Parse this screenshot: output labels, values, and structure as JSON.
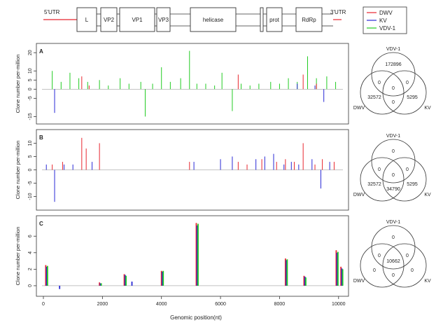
{
  "genome_map": {
    "utr5_label": "5'UTR",
    "utr3_label": "3'UTR",
    "segments": [
      "L",
      "VP2",
      "VP1",
      "VP3",
      "helicase",
      "prot",
      "RdRp"
    ]
  },
  "legend": {
    "entries": [
      {
        "name": "DWV",
        "color": "#e8262e"
      },
      {
        "name": "KV",
        "color": "#2a2ad6"
      },
      {
        "name": "VDV-1",
        "color": "#22cc22"
      }
    ]
  },
  "axis": {
    "ylabel": "Clone number per-million",
    "xlabel": "Genomic position(nt)"
  },
  "chart_data": [
    {
      "type": "bar",
      "panel_label": "A",
      "xlim": [
        0,
        10100
      ],
      "ylim": [
        -16,
        22
      ],
      "yticks": [
        -15,
        -5,
        0,
        5,
        10,
        20
      ],
      "xticks": [
        0,
        2000,
        4000,
        6000,
        8000,
        10000
      ],
      "series": [
        {
          "name": "VDV-1",
          "color": "#22cc22",
          "x": [
            300,
            600,
            900,
            1200,
            1500,
            1900,
            2200,
            2600,
            2900,
            3300,
            3450,
            3700,
            4000,
            4300,
            4650,
            4950,
            5200,
            5500,
            5800,
            6050,
            6400,
            6700,
            7000,
            7300,
            7700,
            8000,
            8300,
            8600,
            8950,
            9250,
            9600,
            9900
          ],
          "y": [
            10,
            4,
            9,
            6,
            4,
            5,
            2,
            6,
            3,
            4,
            -15,
            3,
            12,
            4,
            6,
            21,
            3,
            3,
            2,
            9,
            -12,
            3,
            2,
            3,
            4,
            3,
            6,
            4,
            18,
            6,
            7,
            4
          ]
        },
        {
          "name": "DWV",
          "color": "#e8262e",
          "x": [
            1300,
            1550,
            6600,
            8800,
            9250
          ],
          "y": [
            7,
            2,
            8,
            8,
            3
          ]
        },
        {
          "name": "KV",
          "color": "#2a2ad6",
          "x": [
            380,
            8600,
            9200,
            9500
          ],
          "y": [
            -13,
            3,
            2,
            -7
          ]
        }
      ]
    },
    {
      "type": "bar",
      "panel_label": "B",
      "xlim": [
        0,
        10100
      ],
      "ylim": [
        -13,
        13
      ],
      "yticks": [
        -10,
        -5,
        0,
        5,
        10
      ],
      "xticks": [
        0,
        2000,
        4000,
        6000,
        8000,
        10000
      ],
      "series": [
        {
          "name": "DWV",
          "color": "#e8262e",
          "x": [
            300,
            650,
            1300,
            1450,
            1900,
            4950,
            6600,
            6900,
            7400,
            7900,
            8200,
            8500,
            8800,
            9200,
            9450,
            9850
          ],
          "y": [
            2,
            3,
            12,
            8,
            10,
            3,
            3,
            2,
            4,
            3,
            4,
            3,
            10,
            2,
            4,
            3
          ]
        },
        {
          "name": "KV",
          "color": "#2a2ad6",
          "x": [
            100,
            380,
            700,
            1000,
            1650,
            5100,
            6000,
            6400,
            7200,
            7500,
            7800,
            8150,
            8400,
            8650,
            9100,
            9400,
            9700
          ],
          "y": [
            2,
            -12,
            2,
            2,
            3,
            3,
            4,
            5,
            4,
            5,
            6,
            2,
            3,
            2,
            4,
            -7,
            3
          ]
        }
      ]
    },
    {
      "type": "bar",
      "panel_label": "C",
      "xlim": [
        0,
        10100
      ],
      "ylim": [
        -0.6,
        7.8
      ],
      "yticks": [
        0,
        2,
        4,
        6
      ],
      "xticks": [
        0,
        2000,
        4000,
        6000,
        8000,
        10000
      ],
      "series": [
        {
          "name": "DWV",
          "color": "#e8262e",
          "x": [
            80,
            1900,
            2740,
            4000,
            5180,
            8200,
            8830,
            9920,
            10080
          ],
          "y": [
            2.5,
            0.4,
            1.4,
            1.8,
            7.6,
            3.3,
            1.2,
            4.3,
            2.3
          ]
        },
        {
          "name": "KV",
          "color": "#2a2ad6",
          "x": [
            110,
            550,
            1930,
            2770,
            3000,
            4030,
            5210,
            8230,
            8860,
            9950,
            10110
          ],
          "y": [
            2.3,
            -0.4,
            0.3,
            1.3,
            0.5,
            1.7,
            7.3,
            3.1,
            1.1,
            4.0,
            2.1
          ]
        },
        {
          "name": "VDV-1",
          "color": "#22cc22",
          "x": [
            140,
            1960,
            2800,
            4060,
            5240,
            8260,
            8890,
            9980,
            10140
          ],
          "y": [
            2.4,
            0.3,
            1.2,
            1.8,
            7.5,
            3.2,
            1.0,
            4.1,
            2.0
          ]
        }
      ]
    }
  ],
  "venns": [
    {
      "top_label": "VDV-1",
      "left_label": "DWV",
      "right_label": "KV",
      "regions": {
        "top": "172896",
        "top_left": "0",
        "top_right": "0",
        "center": "0",
        "left": "32572",
        "right": "5295",
        "bottom": "0"
      }
    },
    {
      "top_label": "VDV-1",
      "left_label": "DWV",
      "right_label": "KV",
      "regions": {
        "top": "0",
        "top_left": "0",
        "top_right": "0",
        "center": "0",
        "left": "32572",
        "right": "5295",
        "bottom": "34790"
      }
    },
    {
      "top_label": "VDV-1",
      "left_label": "DWV",
      "right_label": "KV",
      "regions": {
        "top": "0",
        "top_left": "0",
        "top_right": "0",
        "center": "10662",
        "left": "0",
        "right": "0",
        "bottom": "0"
      }
    }
  ]
}
